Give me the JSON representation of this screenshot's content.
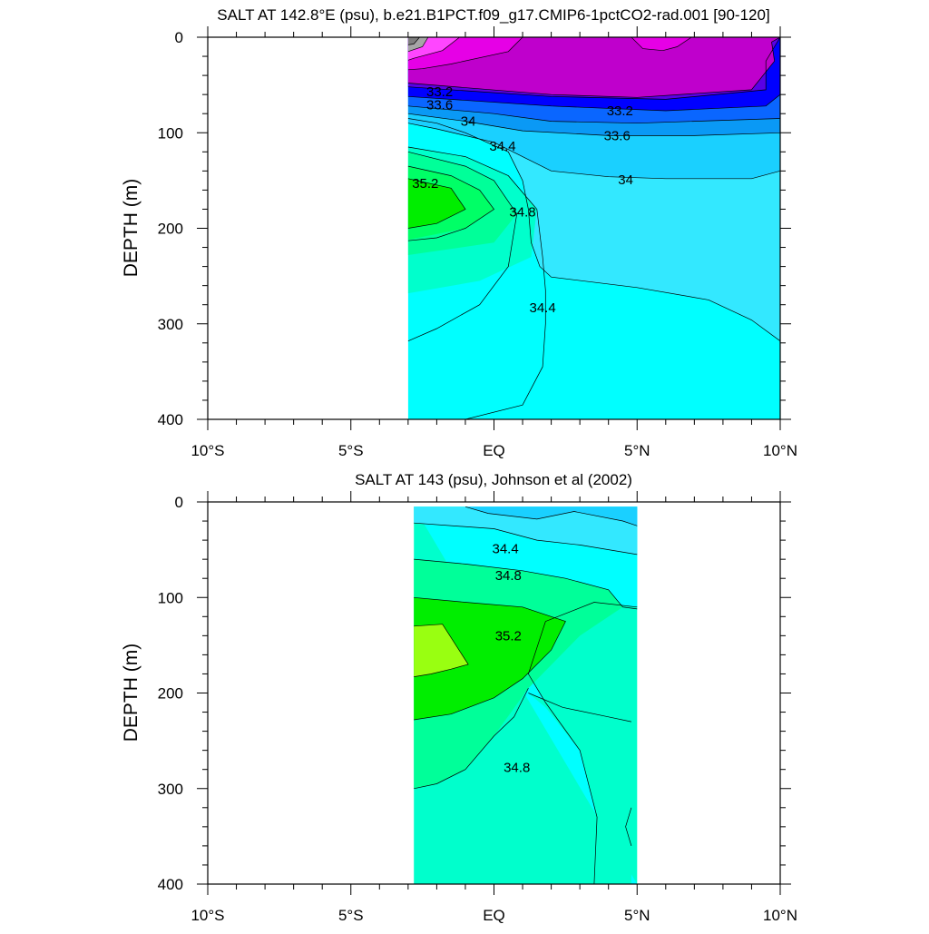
{
  "chart_data": [
    {
      "type": "heatmap",
      "subtype": "filled-contour",
      "title": "SALT AT 142.8°E (psu), b.e21.B1PCT.f09_g17.CMIP6-1pctCO2-rad.001 [90-120]",
      "xlabel": "",
      "ylabel": "DEPTH (m)",
      "xlim": [
        -10,
        10
      ],
      "ylim": [
        0,
        400
      ],
      "y_reversed": true,
      "x_ticks": [
        "10°S",
        "5°S",
        "EQ",
        "5°N",
        "10°N"
      ],
      "y_ticks": [
        "0",
        "100",
        "200",
        "300",
        "400"
      ],
      "data_extent": {
        "x": [
          -3,
          10
        ],
        "y": [
          0,
          400
        ]
      },
      "contour_labels": [
        {
          "text": "33.2",
          "x": -1.9,
          "y": 57
        },
        {
          "text": "33.6",
          "x": -1.9,
          "y": 71
        },
        {
          "text": "34",
          "x": -0.9,
          "y": 88
        },
        {
          "text": "34.4",
          "x": 0.3,
          "y": 114
        },
        {
          "text": "35.2",
          "x": -2.4,
          "y": 153
        },
        {
          "text": "34.8",
          "x": 1.0,
          "y": 183
        },
        {
          "text": "34.4",
          "x": 1.7,
          "y": 283
        },
        {
          "text": "33.2",
          "x": 4.4,
          "y": 77
        },
        {
          "text": "33.6",
          "x": 4.3,
          "y": 103
        },
        {
          "text": "34",
          "x": 4.6,
          "y": 149
        }
      ],
      "colors": {
        "gray_high": "#7f7f7f",
        "gray_low": "#a6a6a6",
        "light_magenta": "#ff46ff",
        "magenta": "#e600e6",
        "purple": "#bf00cc",
        "violet": "#5a00e6",
        "blue": "#0000ff",
        "royal_blue": "#0a66ff",
        "sky_blue": "#0a99f5",
        "light_sky": "#15b8ff",
        "cyan_deep": "#1ad0ff",
        "cyan_mid": "#33e8ff",
        "cyan": "#00ffff",
        "aquamarine": "#00ffcc",
        "spring_green": "#00ff99",
        "mint": "#00ff66",
        "green": "#00ee00",
        "lime": "#99ff11"
      }
    },
    {
      "type": "heatmap",
      "subtype": "filled-contour",
      "title": "SALT AT 143 (psu), Johnson et al (2002)",
      "xlabel": "",
      "ylabel": "DEPTH (m)",
      "xlim": [
        -10,
        10
      ],
      "ylim": [
        0,
        400
      ],
      "y_reversed": true,
      "x_ticks": [
        "10°S",
        "5°S",
        "EQ",
        "5°N",
        "10°N"
      ],
      "y_ticks": [
        "0",
        "100",
        "200",
        "300",
        "400"
      ],
      "data_extent": {
        "x": [
          -2.8,
          5
        ],
        "y": [
          5,
          400
        ]
      },
      "contour_labels": [
        {
          "text": "34.4",
          "x": 0.4,
          "y": 49
        },
        {
          "text": "34.8",
          "x": 0.5,
          "y": 77
        },
        {
          "text": "35.2",
          "x": 0.5,
          "y": 140
        },
        {
          "text": "34.8",
          "x": 0.8,
          "y": 278
        }
      ]
    }
  ]
}
